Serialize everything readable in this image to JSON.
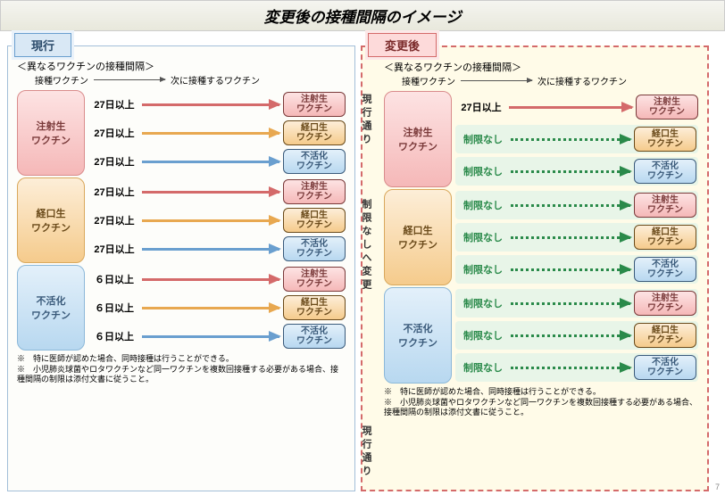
{
  "title": "変更後の接種間隔のイメージ",
  "colors": {
    "pink_bg": "#fde3e3",
    "pink_border": "#d98c8c",
    "orange_bg": "#fdeed8",
    "orange_border": "#d9a85c",
    "blue_bg": "#e3f0fa",
    "blue_border": "#8cb8d9",
    "red_arrow": "#d46a6a",
    "orange_arrow": "#e8a850",
    "blue_arrow": "#6a9fcf",
    "green": "#2a8a4a",
    "right_panel_border": "#d46a6a",
    "right_panel_bg": "#fffbe8",
    "left_panel_border": "#a3bfd9",
    "highlight_bg": "#e8f5e8"
  },
  "left": {
    "label": "現行",
    "subhead": "＜異なるワクチンの接種間隔＞",
    "legend_from": "接種ワクチン",
    "legend_to": "次に接種するワクチン",
    "groups": [
      {
        "src": {
          "line1": "注射生",
          "line2": "ワクチン",
          "style": "pink"
        },
        "arrows": [
          {
            "label": "27日以上",
            "color": "red",
            "tgt": {
              "line1": "注射生",
              "line2": "ワクチン",
              "style": "pink"
            }
          },
          {
            "label": "27日以上",
            "color": "orange",
            "tgt": {
              "line1": "経口生",
              "line2": "ワクチン",
              "style": "orange"
            }
          },
          {
            "label": "27日以上",
            "color": "blue",
            "tgt": {
              "line1": "不活化",
              "line2": "ワクチン",
              "style": "blue"
            }
          }
        ]
      },
      {
        "src": {
          "line1": "経口生",
          "line2": "ワクチン",
          "style": "orange"
        },
        "arrows": [
          {
            "label": "27日以上",
            "color": "red",
            "tgt": {
              "line1": "注射生",
              "line2": "ワクチン",
              "style": "pink"
            }
          },
          {
            "label": "27日以上",
            "color": "orange",
            "tgt": {
              "line1": "経口生",
              "line2": "ワクチン",
              "style": "orange"
            }
          },
          {
            "label": "27日以上",
            "color": "blue",
            "tgt": {
              "line1": "不活化",
              "line2": "ワクチン",
              "style": "blue"
            }
          }
        ]
      },
      {
        "src": {
          "line1": "不活化",
          "line2": "ワクチン",
          "style": "blue"
        },
        "arrows": [
          {
            "label": "６日以上",
            "color": "red",
            "tgt": {
              "line1": "注射生",
              "line2": "ワクチン",
              "style": "pink"
            }
          },
          {
            "label": "６日以上",
            "color": "orange",
            "tgt": {
              "line1": "経口生",
              "line2": "ワクチン",
              "style": "orange"
            }
          },
          {
            "label": "６日以上",
            "color": "blue",
            "tgt": {
              "line1": "不活化",
              "line2": "ワクチン",
              "style": "blue"
            }
          }
        ]
      }
    ],
    "notes": [
      "※　特に医師が認めた場合、同時接種は行うことができる。",
      "※　小児肺炎球菌やロタワクチンなど同一ワクチンを複数回接種する必要がある場合、接種間隔の制限は添付文書に従うこと。"
    ]
  },
  "right": {
    "label": "変更後",
    "subhead": "＜異なるワクチンの接種間隔＞",
    "legend_from": "接種ワクチン",
    "legend_to": "次に接種するワクチン",
    "side_label_top": "現行通り",
    "side_label_mid": "制限なしへ変更",
    "side_label_bot": "現行通り",
    "groups": [
      {
        "src": {
          "line1": "注射生",
          "line2": "ワクチン",
          "style": "pink"
        },
        "arrows": [
          {
            "label": "27日以上",
            "color": "red",
            "dashed": false,
            "tgt": {
              "line1": "注射生",
              "line2": "ワクチン",
              "style": "pink"
            }
          },
          {
            "label": "制限なし",
            "color": "green",
            "dashed": true,
            "tgt": {
              "line1": "経口生",
              "line2": "ワクチン",
              "style": "orange"
            }
          },
          {
            "label": "制限なし",
            "color": "green",
            "dashed": true,
            "tgt": {
              "line1": "不活化",
              "line2": "ワクチン",
              "style": "blue"
            }
          }
        ]
      },
      {
        "src": {
          "line1": "経口生",
          "line2": "ワクチン",
          "style": "orange"
        },
        "arrows": [
          {
            "label": "制限なし",
            "color": "green",
            "dashed": true,
            "tgt": {
              "line1": "注射生",
              "line2": "ワクチン",
              "style": "pink"
            }
          },
          {
            "label": "制限なし",
            "color": "green",
            "dashed": true,
            "tgt": {
              "line1": "経口生",
              "line2": "ワクチン",
              "style": "orange"
            }
          },
          {
            "label": "制限なし",
            "color": "green",
            "dashed": true,
            "tgt": {
              "line1": "不活化",
              "line2": "ワクチン",
              "style": "blue"
            }
          }
        ]
      },
      {
        "src": {
          "line1": "不活化",
          "line2": "ワクチン",
          "style": "blue"
        },
        "arrows": [
          {
            "label": "制限なし",
            "color": "green",
            "dashed": true,
            "tgt": {
              "line1": "注射生",
              "line2": "ワクチン",
              "style": "pink"
            }
          },
          {
            "label": "制限なし",
            "color": "green",
            "dashed": true,
            "tgt": {
              "line1": "経口生",
              "line2": "ワクチン",
              "style": "orange"
            }
          },
          {
            "label": "制限なし",
            "color": "green",
            "dashed": true,
            "tgt": {
              "line1": "不活化",
              "line2": "ワクチン",
              "style": "blue"
            }
          }
        ]
      }
    ],
    "notes": [
      "※　特に医師が認めた場合、同時接種は行うことができる。",
      "※　小児肺炎球菌やロタワクチンなど同一ワクチンを複数回接種する必要がある場合、接種間隔の制限は添付文書に従うこと。"
    ]
  },
  "page_number": "7"
}
